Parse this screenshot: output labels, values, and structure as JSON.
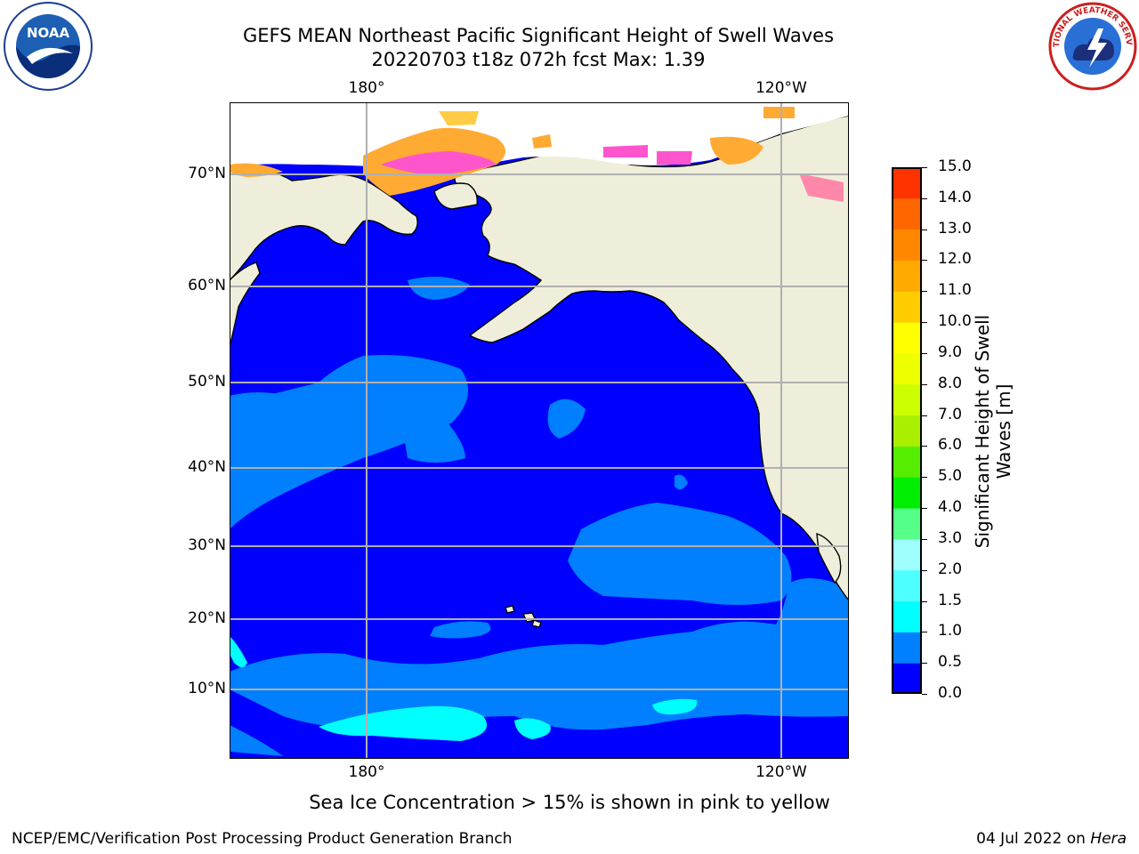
{
  "header": {
    "title_line1": "GEFS MEAN Northeast Pacific Significant Height of Swell Waves",
    "title_line2": "20220703 t18z 072h fcst   Max: 1.39"
  },
  "logos": {
    "left": "noaa-logo",
    "left_text": "NOAA",
    "right": "nws-logo",
    "right_text": "NATIONAL WEATHER SERVICE"
  },
  "map": {
    "lat_labels": [
      "70°N",
      "60°N",
      "50°N",
      "40°N",
      "30°N",
      "20°N",
      "10°N"
    ],
    "lon_labels_top": [
      "180°",
      "120°W"
    ],
    "lon_labels_bottom": [
      "180°",
      "120°W"
    ],
    "land_color": "#efeedb",
    "ocean_color": "#0000ff",
    "swell_0_5_1_0_color": "#007fff",
    "swell_1_0_1_5_color": "#00ffff"
  },
  "colorbar": {
    "label_line1": "Significant Height of Swell",
    "label_line2": "Waves [m]",
    "ticks": [
      "15.0",
      "14.0",
      "13.0",
      "12.0",
      "11.0",
      "10.0",
      "9.0",
      "8.0",
      "7.0",
      "6.0",
      "5.0",
      "4.0",
      "3.0",
      "2.0",
      "1.5",
      "1.0",
      "0.5",
      "0.0"
    ],
    "colors_bottom_to_top": [
      "#0000ff",
      "#007fff",
      "#00ffff",
      "#4dffff",
      "#9ffffd",
      "#55ff88",
      "#00ee00",
      "#55ee00",
      "#aaee00",
      "#ccff00",
      "#eeff00",
      "#ffff00",
      "#ffcc00",
      "#ffaa00",
      "#ff8800",
      "#ff6600",
      "#ff3300",
      "#ff0000"
    ]
  },
  "footer": {
    "ice_note": "Sea Ice Concentration > 15% is shown in pink to yellow",
    "credit": "NCEP/EMC/Verification Post Processing Product Generation Branch",
    "date": "04 Jul 2022 on",
    "host": "Hera"
  }
}
